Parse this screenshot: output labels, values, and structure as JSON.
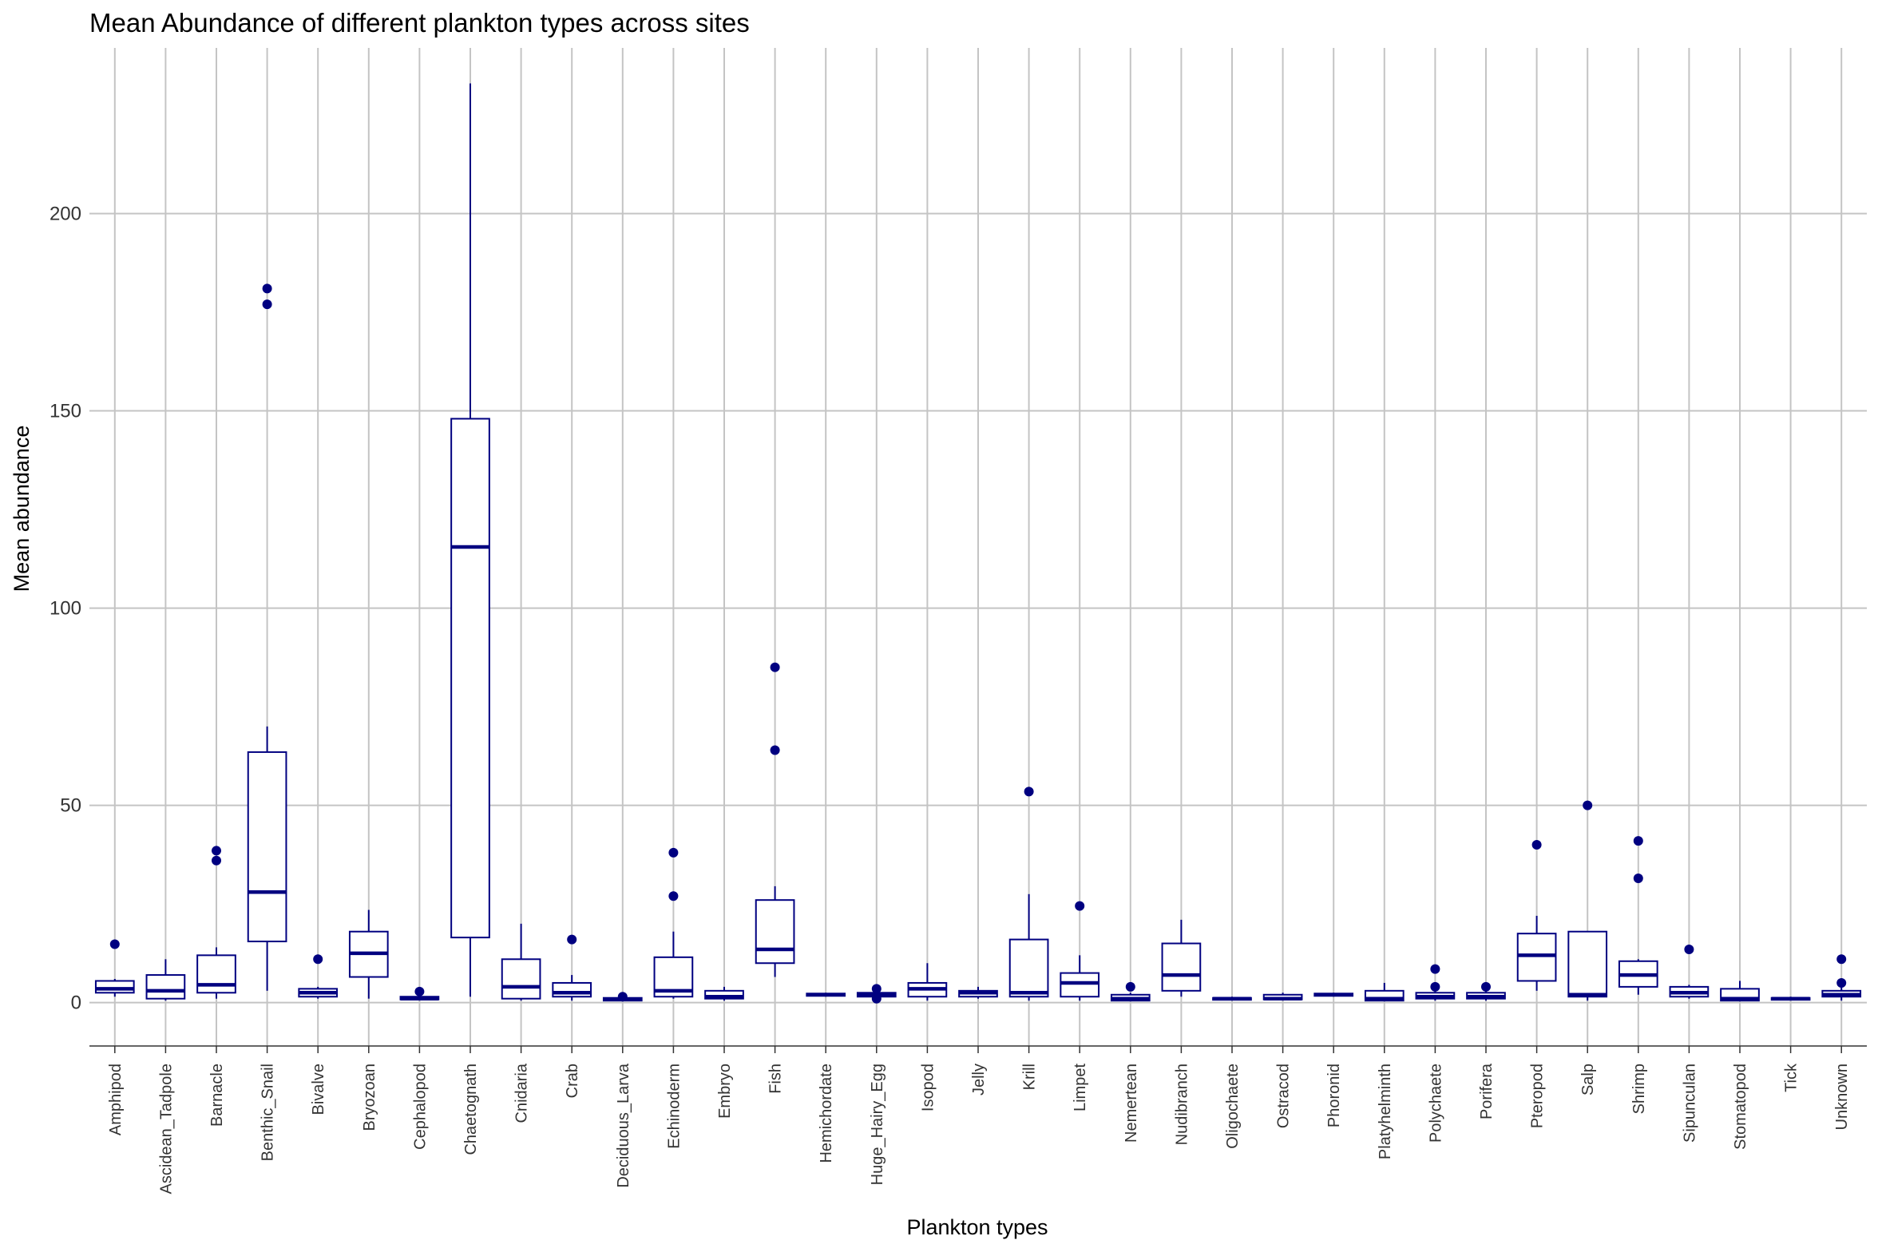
{
  "chart_data": {
    "type": "boxplot",
    "title": "Mean Abundance of different plankton types across sites",
    "xlabel": "Plankton types",
    "ylabel": "Mean abundance",
    "ylim": [
      -11,
      242
    ],
    "yticks": [
      0,
      50,
      100,
      150,
      200
    ],
    "grid": true,
    "legend": "none",
    "color": "#000080",
    "fill": "#ffffff",
    "categories": [
      "Amphipod",
      "Ascidean_Tadpole",
      "Barnacle",
      "Benthic_Snail",
      "Bivalve",
      "Bryozoan",
      "Cephalopod",
      "Chaetognath",
      "Cnidaria",
      "Crab",
      "Deciduous_Larva",
      "Echinoderm",
      "Embryo",
      "Fish",
      "Hemichordate",
      "Huge_Hairy_Egg",
      "Isopod",
      "Jelly",
      "Krill",
      "Limpet",
      "Nemertean",
      "Nudibranch",
      "Oligochaete",
      "Ostracod",
      "Phoronid",
      "Platyhelminth",
      "Polychaete",
      "Porifera",
      "Pteropod",
      "Salp",
      "Shrimp",
      "Sipunculan",
      "Stomatopod",
      "Tick",
      "Unknown"
    ],
    "boxes": [
      {
        "category": "Amphipod",
        "whisker_low": 1.5,
        "q1": 2.5,
        "median": 3.5,
        "q3": 5.5,
        "whisker_high": 6,
        "outliers": [
          14.8
        ]
      },
      {
        "category": "Ascidean_Tadpole",
        "whisker_low": 0.5,
        "q1": 1,
        "median": 3,
        "q3": 7,
        "whisker_high": 11,
        "outliers": []
      },
      {
        "category": "Barnacle",
        "whisker_low": 1,
        "q1": 2.5,
        "median": 4.5,
        "q3": 12,
        "whisker_high": 14,
        "outliers": [
          36,
          38.5
        ]
      },
      {
        "category": "Benthic_Snail",
        "whisker_low": 3,
        "q1": 15.5,
        "median": 28,
        "q3": 63.5,
        "whisker_high": 70,
        "outliers": [
          177,
          181
        ]
      },
      {
        "category": "Bivalve",
        "whisker_low": 1,
        "q1": 1.5,
        "median": 2.5,
        "q3": 3.5,
        "whisker_high": 4,
        "outliers": [
          11
        ]
      },
      {
        "category": "Bryozoan",
        "whisker_low": 1,
        "q1": 6.5,
        "median": 12.5,
        "q3": 18,
        "whisker_high": 23.5,
        "outliers": []
      },
      {
        "category": "Cephalopod",
        "whisker_low": 0.5,
        "q1": 0.8,
        "median": 1,
        "q3": 1.5,
        "whisker_high": 2,
        "outliers": [
          2.8
        ]
      },
      {
        "category": "Chaetognath",
        "whisker_low": 1.5,
        "q1": 16.5,
        "median": 115.5,
        "q3": 148,
        "whisker_high": 233,
        "outliers": []
      },
      {
        "category": "Cnidaria",
        "whisker_low": 0.5,
        "q1": 1,
        "median": 4,
        "q3": 11,
        "whisker_high": 20,
        "outliers": []
      },
      {
        "category": "Crab",
        "whisker_low": 0.5,
        "q1": 1.5,
        "median": 2.5,
        "q3": 5,
        "whisker_high": 7,
        "outliers": [
          16
        ]
      },
      {
        "category": "Deciduous_Larva",
        "whisker_low": 0.3,
        "q1": 0.5,
        "median": 0.8,
        "q3": 1.2,
        "whisker_high": 1.5,
        "outliers": [
          1.5
        ]
      },
      {
        "category": "Echinoderm",
        "whisker_low": 1,
        "q1": 1.5,
        "median": 3,
        "q3": 11.5,
        "whisker_high": 18,
        "outliers": [
          27,
          38
        ]
      },
      {
        "category": "Embryo",
        "whisker_low": 0.5,
        "q1": 1,
        "median": 1.5,
        "q3": 3,
        "whisker_high": 4,
        "outliers": []
      },
      {
        "category": "Fish",
        "whisker_low": 6.5,
        "q1": 10,
        "median": 13.5,
        "q3": 26,
        "whisker_high": 29.5,
        "outliers": [
          64,
          85
        ]
      },
      {
        "category": "Hemichordate",
        "whisker_low": 1.5,
        "q1": 1.7,
        "median": 2,
        "q3": 2.3,
        "whisker_high": 2.5,
        "outliers": []
      },
      {
        "category": "Huge_Hairy_Egg",
        "whisker_low": 1.5,
        "q1": 1.5,
        "median": 2,
        "q3": 2.5,
        "whisker_high": 2.5,
        "outliers": [
          1,
          3.5
        ]
      },
      {
        "category": "Isopod",
        "whisker_low": 0.5,
        "q1": 1.5,
        "median": 3.5,
        "q3": 5,
        "whisker_high": 10,
        "outliers": []
      },
      {
        "category": "Jelly",
        "whisker_low": 1,
        "q1": 1.5,
        "median": 2.5,
        "q3": 3,
        "whisker_high": 4,
        "outliers": []
      },
      {
        "category": "Krill",
        "whisker_low": 0.5,
        "q1": 1.5,
        "median": 2.5,
        "q3": 16,
        "whisker_high": 27.5,
        "outliers": [
          53.5
        ]
      },
      {
        "category": "Limpet",
        "whisker_low": 0.5,
        "q1": 1.5,
        "median": 5,
        "q3": 7.5,
        "whisker_high": 12,
        "outliers": [
          24.5
        ]
      },
      {
        "category": "Nemertean",
        "whisker_low": 0.3,
        "q1": 0.5,
        "median": 1,
        "q3": 2,
        "whisker_high": 2.5,
        "outliers": [
          4
        ]
      },
      {
        "category": "Nudibranch",
        "whisker_low": 1.5,
        "q1": 3,
        "median": 7,
        "q3": 15,
        "whisker_high": 21,
        "outliers": []
      },
      {
        "category": "Oligochaete",
        "whisker_low": 0.5,
        "q1": 0.7,
        "median": 1,
        "q3": 1.2,
        "whisker_high": 1.5,
        "outliers": []
      },
      {
        "category": "Ostracod",
        "whisker_low": 0.5,
        "q1": 0.8,
        "median": 1,
        "q3": 2,
        "whisker_high": 2.5,
        "outliers": []
      },
      {
        "category": "Phoronid",
        "whisker_low": 1.5,
        "q1": 1.7,
        "median": 2,
        "q3": 2.3,
        "whisker_high": 2.5,
        "outliers": []
      },
      {
        "category": "Platyhelminth",
        "whisker_low": 0.3,
        "q1": 0.5,
        "median": 1,
        "q3": 3,
        "whisker_high": 5,
        "outliers": []
      },
      {
        "category": "Polychaete",
        "whisker_low": 0.5,
        "q1": 1,
        "median": 1.5,
        "q3": 2.5,
        "whisker_high": 3,
        "outliers": [
          4,
          8.5
        ]
      },
      {
        "category": "Porifera",
        "whisker_low": 0.5,
        "q1": 1,
        "median": 1.5,
        "q3": 2.5,
        "whisker_high": 3,
        "outliers": [
          4
        ]
      },
      {
        "category": "Pteropod",
        "whisker_low": 3,
        "q1": 5.5,
        "median": 12,
        "q3": 17.5,
        "whisker_high": 22,
        "outliers": [
          40
        ]
      },
      {
        "category": "Salp",
        "whisker_low": 0.5,
        "q1": 1.5,
        "median": 2,
        "q3": 18,
        "whisker_high": 18,
        "outliers": [
          50
        ]
      },
      {
        "category": "Shrimp",
        "whisker_low": 2,
        "q1": 4,
        "median": 7,
        "q3": 10.5,
        "whisker_high": 11,
        "outliers": [
          31.5,
          41
        ]
      },
      {
        "category": "Sipunculan",
        "whisker_low": 1,
        "q1": 1.5,
        "median": 2.5,
        "q3": 4,
        "whisker_high": 4.5,
        "outliers": [
          13.5
        ]
      },
      {
        "category": "Stomatopod",
        "whisker_low": 0.3,
        "q1": 0.5,
        "median": 1,
        "q3": 3.5,
        "whisker_high": 5.5,
        "outliers": []
      },
      {
        "category": "Tick",
        "whisker_low": 0.5,
        "q1": 0.7,
        "median": 1,
        "q3": 1.2,
        "whisker_high": 1.5,
        "outliers": []
      },
      {
        "category": "Unknown",
        "whisker_low": 0.5,
        "q1": 1.5,
        "median": 2,
        "q3": 3,
        "whisker_high": 4,
        "outliers": [
          5,
          11
        ]
      }
    ]
  }
}
